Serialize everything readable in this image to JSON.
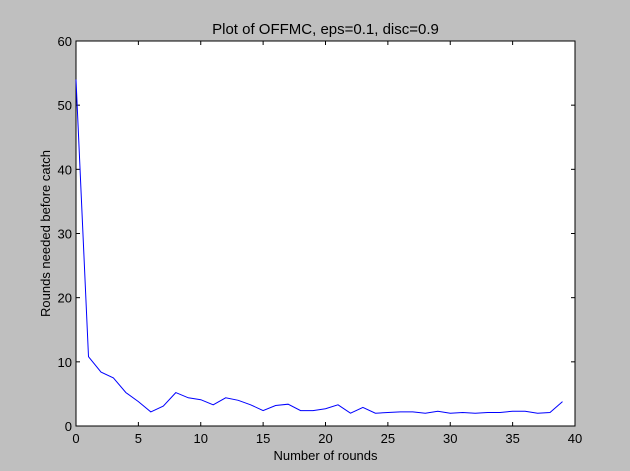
{
  "window": {
    "background": "#bfbfbf"
  },
  "chart_data": {
    "type": "line",
    "title": "Plot of OFFMC, eps=0.1, disc=0.9",
    "xlabel": "Number of rounds",
    "ylabel": "Rounds needed before catch",
    "xlim": [
      0,
      40
    ],
    "ylim": [
      0,
      60
    ],
    "xticks": [
      0,
      5,
      10,
      15,
      20,
      25,
      30,
      35,
      40
    ],
    "yticks": [
      0,
      10,
      20,
      30,
      40,
      50,
      60
    ],
    "grid": false,
    "legend": "none",
    "series": [
      {
        "color": "#0000ff",
        "x": [
          0,
          1,
          2,
          3,
          4,
          5,
          6,
          7,
          8,
          9,
          10,
          11,
          12,
          13,
          14,
          15,
          16,
          17,
          18,
          19,
          20,
          21,
          22,
          23,
          24,
          25,
          26,
          27,
          28,
          29,
          30,
          31,
          32,
          33,
          34,
          35,
          36,
          37,
          38,
          39
        ],
        "values": [
          54,
          10.8,
          8.4,
          7.5,
          5.2,
          3.8,
          2.2,
          3.1,
          5.2,
          4.4,
          4.1,
          3.3,
          4.4,
          4.0,
          3.3,
          2.4,
          3.2,
          3.4,
          2.4,
          2.4,
          2.7,
          3.3,
          2.0,
          2.9,
          2.0,
          2.1,
          2.2,
          2.2,
          2.0,
          2.3,
          2.0,
          2.1,
          2.0,
          2.1,
          2.1,
          2.3,
          2.3,
          2.0,
          2.1,
          3.8
        ]
      }
    ]
  }
}
